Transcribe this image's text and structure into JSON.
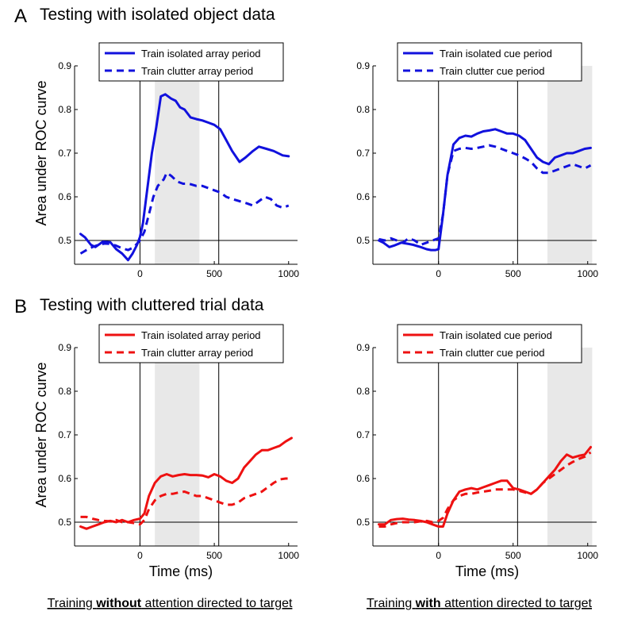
{
  "sections": [
    {
      "letter": "A",
      "title": "Testing with isolated object data"
    },
    {
      "letter": "B",
      "title": "Testing with cluttered trial data"
    }
  ],
  "ylabel": "Area under ROC curve",
  "xlabel": "Time (ms)",
  "captions": [
    {
      "pre": "Training ",
      "bold": "without",
      "post": " attention directed to target"
    },
    {
      "pre": "Training ",
      "bold": "with",
      "post": " attention directed to target"
    }
  ],
  "colors": {
    "A": "#1111dd",
    "B": "#ee1111"
  },
  "chart_data": [
    {
      "type": "line",
      "panel": "A-left",
      "xlim": [
        -440,
        1060
      ],
      "ylim": [
        0.45,
        0.9
      ],
      "xticks": [
        0,
        500,
        1000
      ],
      "yticks": [
        0.5,
        0.6,
        0.7,
        0.8,
        0.9
      ],
      "reference_y": 0.5,
      "vlines": [
        0,
        530
      ],
      "shaded": [
        100,
        400
      ],
      "legend_position": "top",
      "series": [
        {
          "name": "Train isolated array period",
          "style": "solid",
          "x": [
            -400,
            -370,
            -330,
            -300,
            -250,
            -200,
            -160,
            -120,
            -80,
            -50,
            -20,
            0,
            20,
            50,
            80,
            110,
            140,
            170,
            210,
            240,
            270,
            300,
            340,
            380,
            420,
            460,
            500,
            540,
            580,
            620,
            670,
            710,
            760,
            800,
            850,
            900,
            960,
            1000
          ],
          "y": [
            0.515,
            0.507,
            0.49,
            0.485,
            0.497,
            0.496,
            0.48,
            0.47,
            0.455,
            0.47,
            0.49,
            0.508,
            0.54,
            0.62,
            0.7,
            0.76,
            0.83,
            0.835,
            0.825,
            0.82,
            0.805,
            0.8,
            0.782,
            0.778,
            0.775,
            0.77,
            0.765,
            0.755,
            0.73,
            0.705,
            0.68,
            0.69,
            0.705,
            0.715,
            0.71,
            0.705,
            0.695,
            0.693
          ]
        },
        {
          "name": "Train clutter array period",
          "style": "dashed",
          "x": [
            -400,
            -360,
            -320,
            -280,
            -240,
            -200,
            -160,
            -120,
            -80,
            -40,
            0,
            30,
            60,
            90,
            120,
            160,
            180,
            210,
            250,
            290,
            330,
            380,
            420,
            460,
            500,
            540,
            580,
            620,
            670,
            720,
            760,
            800,
            840,
            880,
            920,
            960,
            1000
          ],
          "y": [
            0.47,
            0.478,
            0.485,
            0.49,
            0.493,
            0.492,
            0.488,
            0.482,
            0.478,
            0.485,
            0.5,
            0.52,
            0.56,
            0.6,
            0.625,
            0.64,
            0.655,
            0.648,
            0.635,
            0.63,
            0.63,
            0.625,
            0.625,
            0.62,
            0.615,
            0.61,
            0.6,
            0.595,
            0.59,
            0.585,
            0.58,
            0.59,
            0.6,
            0.595,
            0.58,
            0.575,
            0.58
          ]
        }
      ]
    },
    {
      "type": "line",
      "panel": "A-right",
      "xlim": [
        -440,
        1060
      ],
      "ylim": [
        0.45,
        0.9
      ],
      "xticks": [
        0,
        500,
        1000
      ],
      "yticks": [
        0.5,
        0.6,
        0.7,
        0.8,
        0.9
      ],
      "reference_y": 0.5,
      "vlines": [
        0,
        530
      ],
      "shaded": [
        730,
        1030
      ],
      "legend_position": "top",
      "series": [
        {
          "name": "Train isolated cue period",
          "style": "solid",
          "x": [
            -400,
            -370,
            -330,
            -300,
            -250,
            -200,
            -170,
            -120,
            -80,
            -50,
            -20,
            0,
            30,
            60,
            100,
            140,
            180,
            220,
            260,
            300,
            340,
            380,
            420,
            460,
            500,
            540,
            580,
            620,
            660,
            700,
            740,
            780,
            820,
            860,
            900,
            940,
            980,
            1020
          ],
          "y": [
            0.5,
            0.495,
            0.485,
            0.488,
            0.495,
            0.492,
            0.49,
            0.485,
            0.48,
            0.478,
            0.478,
            0.48,
            0.56,
            0.65,
            0.72,
            0.735,
            0.74,
            0.738,
            0.745,
            0.75,
            0.752,
            0.755,
            0.75,
            0.745,
            0.745,
            0.74,
            0.73,
            0.71,
            0.69,
            0.68,
            0.675,
            0.69,
            0.695,
            0.7,
            0.7,
            0.705,
            0.71,
            0.712
          ]
        },
        {
          "name": "Train clutter cue period",
          "style": "dashed",
          "x": [
            -400,
            -360,
            -320,
            -280,
            -240,
            -200,
            -160,
            -120,
            -80,
            -40,
            0,
            30,
            60,
            100,
            140,
            180,
            220,
            260,
            300,
            340,
            380,
            420,
            460,
            500,
            540,
            580,
            620,
            660,
            700,
            740,
            780,
            820,
            860,
            900,
            940,
            980,
            1020
          ],
          "y": [
            0.503,
            0.5,
            0.505,
            0.5,
            0.495,
            0.505,
            0.5,
            0.49,
            0.495,
            0.5,
            0.505,
            0.56,
            0.65,
            0.705,
            0.71,
            0.712,
            0.71,
            0.712,
            0.715,
            0.718,
            0.715,
            0.71,
            0.705,
            0.7,
            0.695,
            0.688,
            0.68,
            0.665,
            0.655,
            0.655,
            0.66,
            0.665,
            0.67,
            0.675,
            0.67,
            0.665,
            0.672
          ]
        }
      ]
    },
    {
      "type": "line",
      "panel": "B-left",
      "xlim": [
        -440,
        1060
      ],
      "ylim": [
        0.45,
        0.9
      ],
      "xticks": [
        0,
        500,
        1000
      ],
      "yticks": [
        0.5,
        0.6,
        0.7,
        0.8,
        0.9
      ],
      "reference_y": 0.5,
      "vlines": [
        0,
        530
      ],
      "shaded": [
        100,
        400
      ],
      "legend_position": "top",
      "series": [
        {
          "name": "Train isolated array period",
          "style": "solid",
          "x": [
            -400,
            -360,
            -320,
            -280,
            -240,
            -200,
            -160,
            -120,
            -80,
            -40,
            0,
            30,
            60,
            100,
            140,
            180,
            220,
            260,
            300,
            340,
            380,
            420,
            460,
            500,
            540,
            580,
            620,
            660,
            700,
            740,
            780,
            820,
            860,
            900,
            940,
            980,
            1020
          ],
          "y": [
            0.49,
            0.485,
            0.49,
            0.495,
            0.5,
            0.503,
            0.5,
            0.505,
            0.5,
            0.505,
            0.508,
            0.52,
            0.56,
            0.59,
            0.605,
            0.61,
            0.605,
            0.608,
            0.61,
            0.608,
            0.608,
            0.607,
            0.603,
            0.61,
            0.605,
            0.595,
            0.59,
            0.6,
            0.625,
            0.64,
            0.655,
            0.665,
            0.665,
            0.67,
            0.675,
            0.685,
            0.693
          ]
        },
        {
          "name": "Train clutter array period",
          "style": "dashed",
          "x": [
            -400,
            -360,
            -320,
            -280,
            -240,
            -200,
            -160,
            -120,
            -80,
            -40,
            0,
            30,
            60,
            100,
            140,
            180,
            220,
            260,
            300,
            340,
            380,
            420,
            460,
            500,
            540,
            580,
            620,
            660,
            700,
            740,
            780,
            820,
            860,
            900,
            940,
            980,
            1020
          ],
          "y": [
            0.512,
            0.512,
            0.508,
            0.505,
            0.503,
            0.502,
            0.505,
            0.5,
            0.5,
            0.498,
            0.495,
            0.505,
            0.53,
            0.55,
            0.56,
            0.565,
            0.565,
            0.568,
            0.57,
            0.565,
            0.56,
            0.56,
            0.555,
            0.55,
            0.545,
            0.54,
            0.54,
            0.545,
            0.555,
            0.56,
            0.565,
            0.57,
            0.58,
            0.59,
            0.598,
            0.6,
            0.6
          ]
        }
      ]
    },
    {
      "type": "line",
      "panel": "B-right",
      "xlim": [
        -440,
        1060
      ],
      "ylim": [
        0.45,
        0.9
      ],
      "xticks": [
        0,
        500,
        1000
      ],
      "yticks": [
        0.5,
        0.6,
        0.7,
        0.8,
        0.9
      ],
      "reference_y": 0.5,
      "vlines": [
        0,
        530
      ],
      "shaded": [
        730,
        1030
      ],
      "legend_position": "top",
      "series": [
        {
          "name": "Train isolated cue period",
          "style": "solid",
          "x": [
            -400,
            -360,
            -320,
            -280,
            -240,
            -200,
            -160,
            -120,
            -80,
            -40,
            0,
            30,
            60,
            100,
            140,
            180,
            220,
            260,
            300,
            340,
            380,
            420,
            460,
            500,
            540,
            580,
            620,
            660,
            700,
            740,
            780,
            820,
            860,
            900,
            940,
            980,
            1020
          ],
          "y": [
            0.495,
            0.495,
            0.505,
            0.507,
            0.508,
            0.506,
            0.505,
            0.503,
            0.5,
            0.495,
            0.49,
            0.49,
            0.52,
            0.55,
            0.57,
            0.575,
            0.578,
            0.575,
            0.58,
            0.585,
            0.59,
            0.595,
            0.595,
            0.578,
            0.575,
            0.57,
            0.565,
            0.575,
            0.59,
            0.605,
            0.62,
            0.64,
            0.655,
            0.648,
            0.652,
            0.655,
            0.672
          ]
        },
        {
          "name": "Train clutter cue period",
          "style": "dashed",
          "x": [
            -400,
            -360,
            -320,
            -280,
            -240,
            -200,
            -160,
            -120,
            -80,
            -40,
            0,
            30,
            60,
            100,
            140,
            180,
            220,
            260,
            300,
            340,
            380,
            420,
            460,
            500,
            540,
            580,
            620,
            660,
            700,
            740,
            780,
            820,
            860,
            900,
            940,
            980,
            1020
          ],
          "y": [
            0.49,
            0.49,
            0.495,
            0.498,
            0.5,
            0.5,
            0.5,
            0.502,
            0.503,
            0.5,
            0.503,
            0.51,
            0.53,
            0.55,
            0.56,
            0.565,
            0.565,
            0.568,
            0.57,
            0.572,
            0.575,
            0.575,
            0.575,
            0.575,
            0.572,
            0.568,
            0.565,
            0.575,
            0.59,
            0.6,
            0.61,
            0.62,
            0.63,
            0.638,
            0.645,
            0.65,
            0.66
          ]
        }
      ]
    }
  ]
}
